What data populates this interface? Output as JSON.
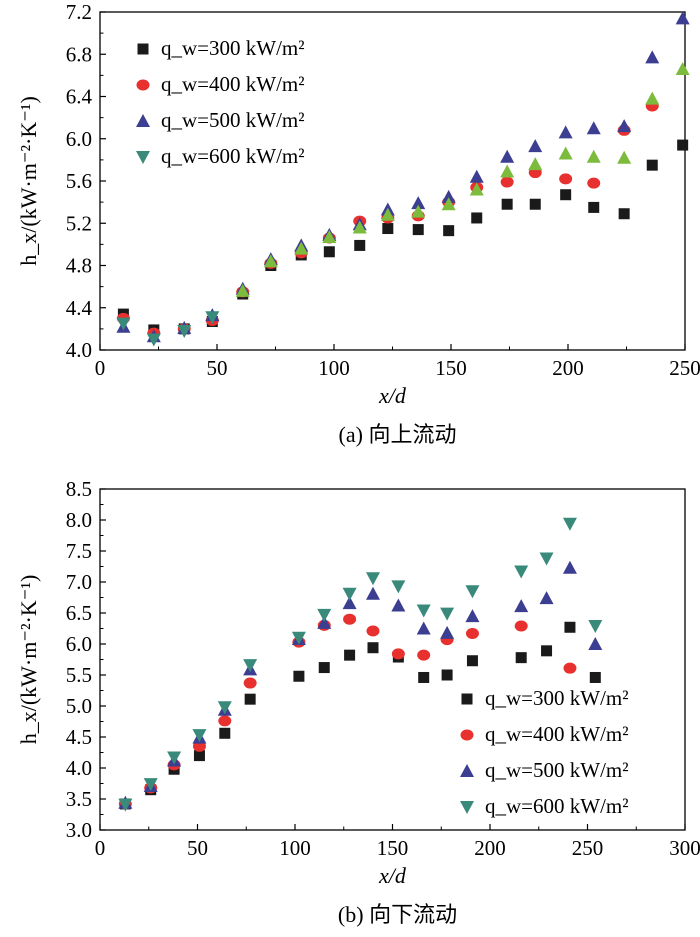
{
  "chart_data": [
    {
      "type": "scatter",
      "caption": "(a) 向上流动",
      "xlabel": "x/d",
      "ylabel": "h_x/(kW·m⁻²·K⁻¹)",
      "xlim": [
        0,
        250
      ],
      "ylim": [
        4.0,
        7.2
      ],
      "xticks": [
        0,
        50,
        100,
        150,
        200,
        250
      ],
      "yticks": [
        4.0,
        4.4,
        4.8,
        5.2,
        5.6,
        6.0,
        6.4,
        6.8,
        7.2
      ],
      "legend_position": "top-left",
      "series": [
        {
          "name": "q_w=300 kW/m²",
          "marker": "square",
          "color": "#1a1a1a",
          "x": [
            10,
            23,
            36,
            48,
            61,
            73,
            86,
            98,
            111,
            123,
            136,
            149,
            161,
            174,
            186,
            199,
            211,
            224,
            236,
            249
          ],
          "y": [
            4.34,
            4.19,
            4.2,
            4.27,
            4.53,
            4.8,
            4.9,
            4.93,
            4.99,
            5.15,
            5.14,
            5.13,
            5.25,
            5.38,
            5.38,
            5.47,
            5.35,
            5.29,
            5.75,
            5.94
          ]
        },
        {
          "name": "q_w=400 kW/m²",
          "marker": "circle",
          "color": "#e8312e",
          "x": [
            10,
            23,
            36,
            48,
            61,
            73,
            86,
            98,
            111,
            123,
            136,
            149,
            161,
            174,
            186,
            199,
            211,
            224,
            236
          ],
          "y": [
            4.3,
            4.16,
            4.2,
            4.28,
            4.55,
            4.82,
            4.92,
            5.06,
            5.22,
            5.25,
            5.27,
            5.4,
            5.54,
            5.59,
            5.68,
            5.62,
            5.58,
            6.08,
            6.31
          ]
        },
        {
          "name": "q_w=500 kW/m²",
          "marker": "triangle-up",
          "color": "#3c3f91",
          "x": [
            10,
            23,
            36,
            48,
            61,
            73,
            86,
            98,
            111,
            123,
            136,
            149,
            161,
            174,
            186,
            199,
            211,
            224,
            236,
            249
          ],
          "y": [
            4.22,
            4.13,
            4.21,
            4.33,
            4.58,
            4.86,
            4.99,
            5.09,
            5.19,
            5.33,
            5.39,
            5.45,
            5.64,
            5.83,
            5.93,
            6.06,
            6.1,
            6.12,
            6.77,
            7.14
          ]
        },
        {
          "name": "q_w=600 kW/m²",
          "marker": "triangle-down",
          "color": "#3a8a7c",
          "fill_alt": "#7dbb3c",
          "x": [
            10,
            23,
            36,
            48,
            61,
            73,
            86,
            98,
            111,
            123,
            136,
            149,
            161,
            174,
            186,
            199,
            211,
            224,
            236,
            249
          ],
          "y": [
            4.25,
            4.1,
            4.18,
            4.31,
            4.56,
            4.84,
            4.96,
            5.07,
            5.16,
            5.28,
            5.31,
            5.38,
            5.52,
            5.69,
            5.76,
            5.86,
            5.83,
            5.82,
            6.38,
            6.66
          ]
        }
      ]
    },
    {
      "type": "scatter",
      "caption": "(b) 向下流动",
      "xlabel": "x/d",
      "ylabel": "h_x/(kW·m⁻²·K⁻¹)",
      "xlim": [
        0,
        300
      ],
      "ylim": [
        3.0,
        8.5
      ],
      "xticks": [
        0,
        50,
        100,
        150,
        200,
        250,
        300
      ],
      "yticks": [
        3.0,
        3.5,
        4.0,
        4.5,
        5.0,
        5.5,
        6.0,
        6.5,
        7.0,
        7.5,
        8.0,
        8.5
      ],
      "legend_position": "bottom-right",
      "series": [
        {
          "name": "q_w=300 kW/m²",
          "marker": "square",
          "color": "#1a1a1a",
          "x": [
            13,
            26,
            38,
            51,
            64,
            77,
            102,
            115,
            128,
            140,
            153,
            166,
            178,
            191,
            216,
            229,
            241,
            254
          ],
          "y": [
            3.42,
            3.65,
            3.98,
            4.2,
            4.56,
            5.11,
            5.48,
            5.62,
            5.82,
            5.94,
            5.79,
            5.46,
            5.5,
            5.73,
            5.78,
            5.89,
            6.27,
            5.46
          ]
        },
        {
          "name": "q_w=400 kW/m²",
          "marker": "circle",
          "color": "#e8312e",
          "x": [
            13,
            26,
            38,
            51,
            64,
            77,
            102,
            115,
            128,
            140,
            153,
            166,
            178,
            191,
            216,
            241
          ],
          "y": [
            3.42,
            3.68,
            4.05,
            4.35,
            4.76,
            5.37,
            6.03,
            6.3,
            6.4,
            6.21,
            5.84,
            5.82,
            6.07,
            6.17,
            6.29,
            5.61
          ]
        },
        {
          "name": "q_w=500 kW/m²",
          "marker": "triangle-up",
          "color": "#3c3f91",
          "x": [
            13,
            26,
            38,
            51,
            64,
            77,
            102,
            115,
            128,
            140,
            153,
            166,
            178,
            191,
            216,
            229,
            241,
            254
          ],
          "y": [
            3.44,
            3.71,
            4.12,
            4.49,
            4.94,
            5.59,
            6.08,
            6.34,
            6.66,
            6.81,
            6.62,
            6.25,
            6.18,
            6.45,
            6.61,
            6.74,
            7.23,
            6.0
          ]
        },
        {
          "name": "q_w=600 kW/m²",
          "marker": "triangle-down",
          "color": "#3a8a7c",
          "x": [
            13,
            26,
            38,
            51,
            64,
            77,
            102,
            115,
            128,
            140,
            153,
            166,
            178,
            191,
            216,
            229,
            241,
            254
          ],
          "y": [
            3.41,
            3.74,
            4.17,
            4.53,
            4.98,
            5.66,
            6.1,
            6.47,
            6.81,
            7.06,
            6.93,
            6.54,
            6.49,
            6.85,
            7.17,
            7.38,
            7.94,
            6.29
          ]
        }
      ]
    }
  ]
}
